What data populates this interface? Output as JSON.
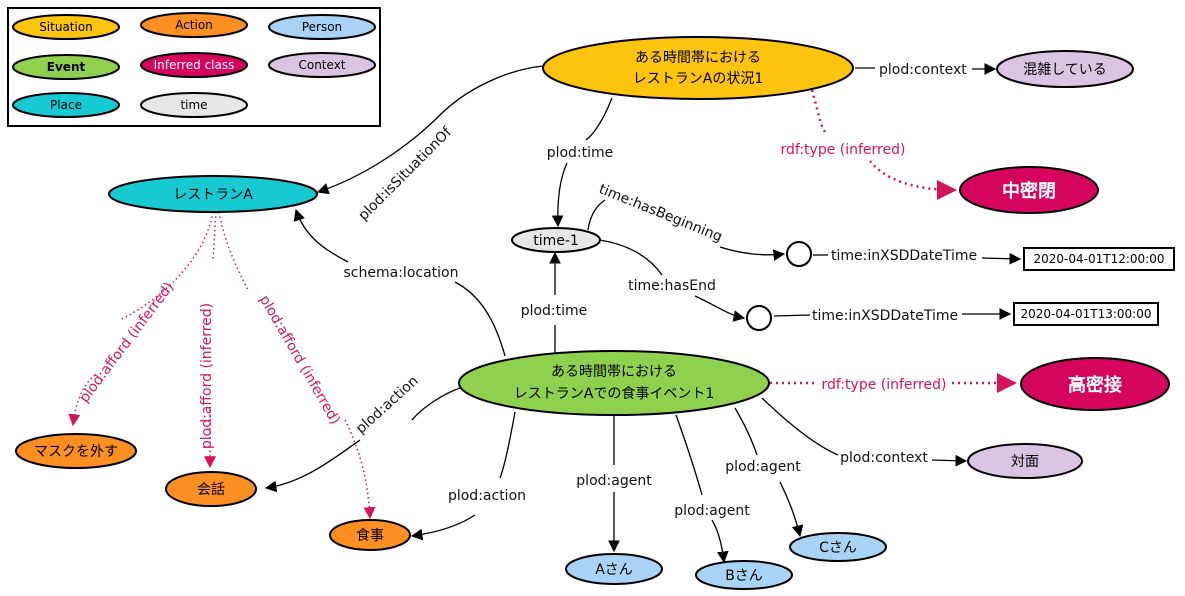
{
  "legend": {
    "situation": "Situation",
    "action": "Action",
    "person": "Person",
    "event": "Event",
    "inferred_class": "Inferred class",
    "context": "Context",
    "place": "Place",
    "time": "time"
  },
  "colors": {
    "situation": "#fcc40e",
    "action": "#fb8f22",
    "person": "#a9d3f4",
    "event": "#8fd14f",
    "inferred": "#d5045f",
    "context": "#dac4e3",
    "place": "#17cad2",
    "time": "#e6e6e6",
    "inferred_edge": "#d6145e"
  },
  "nodes": {
    "situation_l1": "ある時間帯における",
    "situation_l2": "レストランAの状況1",
    "konzatsu": "混雑している",
    "chumitsuhei": "中密閉",
    "restaurant": "レストランA",
    "time1": "time-1",
    "begin_dt": "2020-04-01T12:00:00",
    "end_dt": "2020-04-01T13:00:00",
    "event_l1": "ある時間帯における",
    "event_l2": "レストランAでの食事イベント1",
    "komitsusetsu": "高密接",
    "taimen": "対面",
    "mask": "マスクを外す",
    "kaiwa": "会話",
    "shokuji": "食事",
    "a_san": "Aさん",
    "b_san": "Bさん",
    "c_san": "Cさん"
  },
  "edges": {
    "context_top": "plod:context",
    "is_situation_of": "plod:isSituationOf",
    "time_top": "plod:time",
    "rdf_type_top": "rdf:type (inferred)",
    "has_beginning": "time:hasBeginning",
    "xsd_begin": "time:inXSDDateTime",
    "has_end": "time:hasEnd",
    "xsd_end": "time:inXSDDateTime",
    "schema_location": "schema:location",
    "time_event": "plod:time",
    "rdf_type_event": "rdf:type (inferred)",
    "action_kaiwa": "plod:action",
    "action_shokuji": "plod:action",
    "agent_a": "plod:agent",
    "agent_b": "plod:agent",
    "agent_c": "plod:agent",
    "context_event": "plod:context",
    "afford_1": "plod:afford (inferred)",
    "afford_2": "plod:afford (inferred)",
    "afford_3": "plod:afford (inferred)"
  }
}
